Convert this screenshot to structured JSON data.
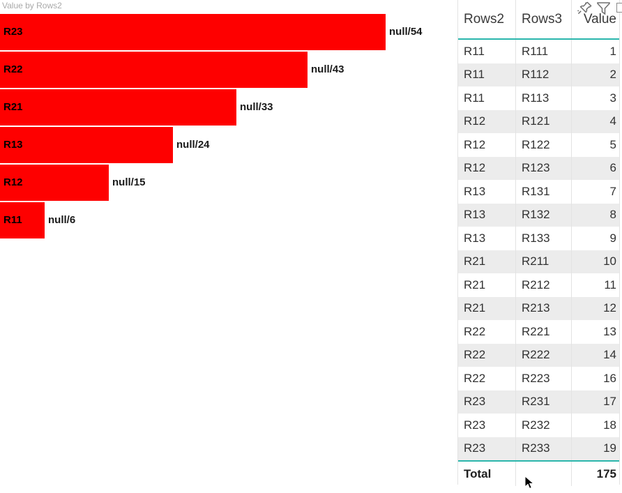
{
  "colors": {
    "bar_red": "#fe0000",
    "accent_teal": "#2bb6ac",
    "alt_row_gray": "#ececec",
    "grid_line_gray": "#e3e3e3",
    "title_gray": "#a9a9a9",
    "icon_gray": "#6e6e6e",
    "text_dark": "#333333"
  },
  "bar_chart": {
    "title": "Value by Rows2",
    "chart_data": {
      "type": "bar",
      "orientation": "horizontal",
      "title": "Value by Rows2",
      "categories": [
        "R23",
        "R22",
        "R21",
        "R13",
        "R12",
        "R11"
      ],
      "values": [
        54,
        43,
        33,
        24,
        15,
        6
      ],
      "bar_labels": [
        "null/54",
        "null/43",
        "null/33",
        "null/24",
        "null/15",
        "null/6"
      ],
      "xlim": [
        0,
        54
      ],
      "bar_color": "#fe0000",
      "grid": false,
      "legend": "none",
      "axes_visible": false
    }
  },
  "table": {
    "columns": [
      {
        "label": "Rows2",
        "align": "left"
      },
      {
        "label": "Rows3",
        "align": "left"
      },
      {
        "label": "Value",
        "align": "right"
      }
    ],
    "rows": [
      [
        "R11",
        "R111",
        "1"
      ],
      [
        "R11",
        "R112",
        "2"
      ],
      [
        "R11",
        "R113",
        "3"
      ],
      [
        "R12",
        "R121",
        "4"
      ],
      [
        "R12",
        "R122",
        "5"
      ],
      [
        "R12",
        "R123",
        "6"
      ],
      [
        "R13",
        "R131",
        "7"
      ],
      [
        "R13",
        "R132",
        "8"
      ],
      [
        "R13",
        "R133",
        "9"
      ],
      [
        "R21",
        "R211",
        "10"
      ],
      [
        "R21",
        "R212",
        "11"
      ],
      [
        "R21",
        "R213",
        "12"
      ],
      [
        "R22",
        "R221",
        "13"
      ],
      [
        "R22",
        "R222",
        "14"
      ],
      [
        "R22",
        "R223",
        "16"
      ],
      [
        "R23",
        "R231",
        "17"
      ],
      [
        "R23",
        "R232",
        "18"
      ],
      [
        "R23",
        "R233",
        "19"
      ]
    ],
    "total": {
      "label": "Total",
      "value": "175"
    }
  },
  "visual_header_icons": [
    {
      "name": "pin-icon"
    },
    {
      "name": "filter-icon"
    },
    {
      "name": "more-options-icon"
    }
  ]
}
